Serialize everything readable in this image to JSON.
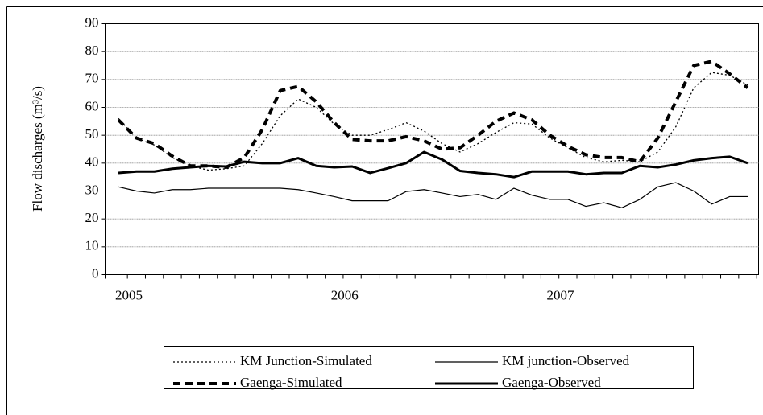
{
  "chart_data": {
    "type": "line",
    "ylabel": "Flow discharges (m³/s)",
    "categories": [
      "2005",
      null,
      null,
      null,
      null,
      null,
      null,
      null,
      null,
      null,
      null,
      null,
      "2006",
      null,
      null,
      null,
      null,
      null,
      null,
      null,
      null,
      null,
      null,
      null,
      "2007",
      null,
      null,
      null,
      null,
      null,
      null,
      null,
      null,
      null,
      null,
      null
    ],
    "ylim": [
      0,
      90
    ],
    "yticks": [
      0,
      10,
      20,
      30,
      40,
      50,
      60,
      70,
      80,
      90
    ],
    "grid": true,
    "legend": "bottom",
    "series": [
      {
        "name": "KM Junction-Simulated",
        "color": "#000000",
        "style": "dotted",
        "values": [
          56,
          49,
          46.5,
          42,
          39,
          37.5,
          38,
          39,
          47,
          57,
          63,
          60,
          54,
          50,
          50,
          52,
          54.5,
          51.5,
          47,
          44,
          47,
          51,
          54.5,
          54,
          49,
          45.5,
          42,
          40.5,
          41,
          40.5,
          44,
          53,
          67,
          72.5,
          71.5,
          68
        ]
      },
      {
        "name": "KM junction-Observed",
        "color": "#000000",
        "style": "thin",
        "values": [
          31.5,
          30,
          29.3,
          30.5,
          30.5,
          31,
          31,
          31,
          31,
          31,
          30.5,
          29.3,
          28,
          26.5,
          26.5,
          26.5,
          29.8,
          30.5,
          29.3,
          28,
          28.8,
          27,
          31,
          28.5,
          27,
          27,
          24.5,
          25.8,
          24,
          27,
          31.5,
          33,
          30,
          25.3,
          28,
          28
        ]
      },
      {
        "name": "Gaenga-Simulated",
        "color": "#000000",
        "style": "dashed",
        "values": [
          55.5,
          49,
          47,
          42.5,
          39,
          39,
          38.5,
          42,
          52,
          66,
          67.5,
          62,
          54.5,
          48.5,
          48,
          48,
          49.5,
          48,
          45,
          45.5,
          50,
          55,
          58,
          55.5,
          50,
          46,
          43,
          42,
          42,
          40.5,
          49,
          62,
          75,
          76.5,
          72,
          67
        ]
      },
      {
        "name": "Gaenga-Observed",
        "color": "#000000",
        "style": "thick",
        "values": [
          36.5,
          37,
          37,
          38,
          38.5,
          39,
          38.8,
          40.5,
          40,
          40,
          41.8,
          39,
          38.5,
          38.8,
          36.5,
          38.2,
          40,
          44,
          41.3,
          37.2,
          36.5,
          36,
          35,
          37,
          37,
          37,
          36,
          36.5,
          36.5,
          39,
          38.5,
          39.5,
          41,
          41.8,
          42.3,
          40
        ]
      }
    ]
  }
}
